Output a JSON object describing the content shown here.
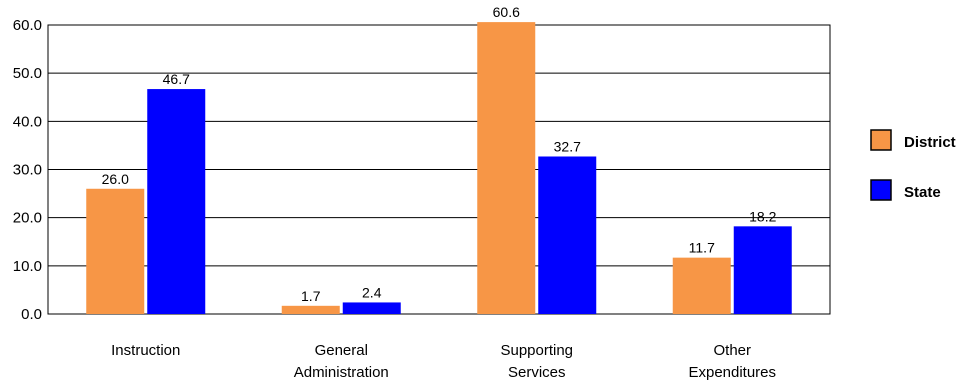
{
  "chart_data": {
    "type": "bar",
    "categories": [
      [
        "Instruction"
      ],
      [
        "General",
        "Administration"
      ],
      [
        "Supporting",
        "Services"
      ],
      [
        "Other",
        "Expenditures"
      ]
    ],
    "series": [
      {
        "name": "District",
        "color": "#f79646",
        "values": [
          26.0,
          1.7,
          60.6,
          11.7
        ],
        "labels": [
          "26.0",
          "1.7",
          "60.6",
          "11.7"
        ]
      },
      {
        "name": "State",
        "color": "#0000ff",
        "values": [
          46.7,
          2.4,
          32.7,
          18.2
        ],
        "labels": [
          "46.7",
          "2.4",
          "32.7",
          "18.2"
        ]
      }
    ],
    "ylim": [
      0,
      60
    ],
    "yticks": [
      "0.0",
      "10.0",
      "20.0",
      "30.0",
      "40.0",
      "50.0",
      "60.0"
    ],
    "grid": true,
    "legend_position": "right"
  }
}
